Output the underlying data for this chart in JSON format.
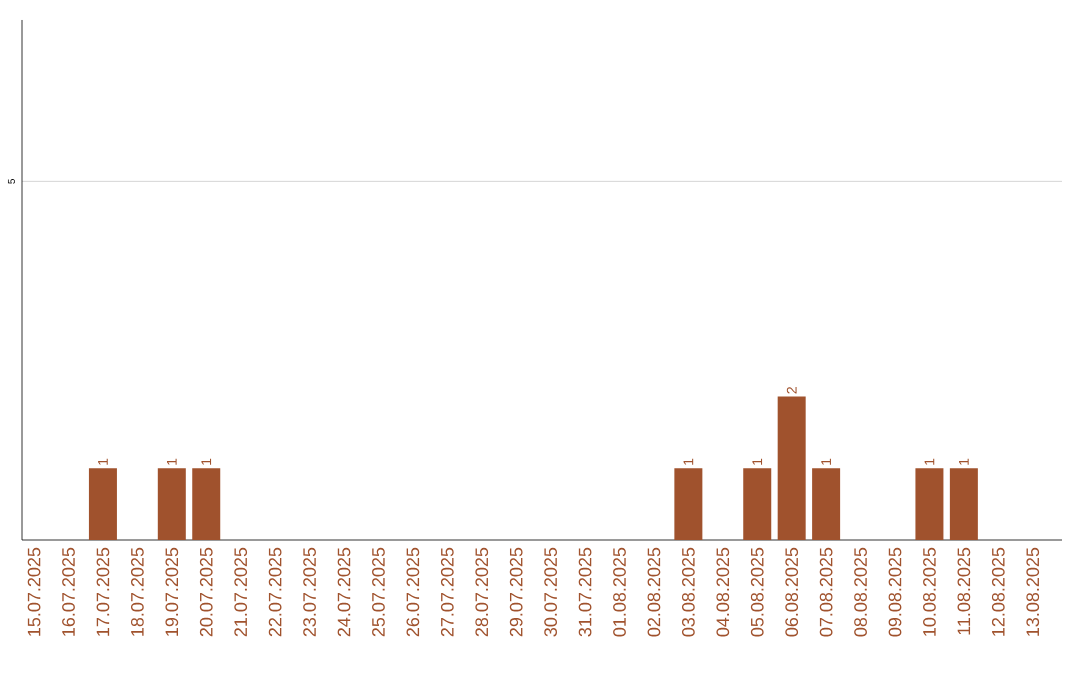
{
  "chart_data": {
    "type": "bar",
    "categories": [
      "15.07.2025",
      "16.07.2025",
      "17.07.2025",
      "18.07.2025",
      "19.07.2025",
      "20.07.2025",
      "21.07.2025",
      "22.07.2025",
      "23.07.2025",
      "24.07.2025",
      "25.07.2025",
      "26.07.2025",
      "27.07.2025",
      "28.07.2025",
      "29.07.2025",
      "30.07.2025",
      "31.07.2025",
      "01.08.2025",
      "02.08.2025",
      "03.08.2025",
      "04.08.2025",
      "05.08.2025",
      "06.08.2025",
      "07.08.2025",
      "08.08.2025",
      "09.08.2025",
      "10.08.2025",
      "11.08.2025",
      "12.08.2025",
      "13.08.2025"
    ],
    "values": [
      0,
      0,
      1,
      0,
      1,
      1,
      0,
      0,
      0,
      0,
      0,
      0,
      0,
      0,
      0,
      0,
      0,
      0,
      0,
      1,
      0,
      1,
      2,
      1,
      0,
      0,
      1,
      1,
      0,
      0
    ],
    "value_labels": [
      null,
      null,
      "1",
      null,
      "1",
      "1",
      null,
      null,
      null,
      null,
      null,
      null,
      null,
      null,
      null,
      null,
      null,
      null,
      null,
      "1",
      null,
      "1",
      "2",
      "1",
      null,
      null,
      "1",
      "1",
      null,
      null
    ],
    "color": "#a0522d",
    "ylim": [
      0,
      7.25
    ],
    "yticks": [
      5
    ],
    "grid": "y"
  }
}
